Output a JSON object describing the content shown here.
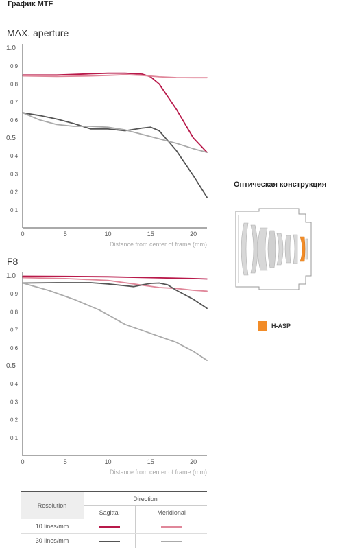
{
  "page_title": "График MTF",
  "optics": {
    "title": "Оптическая конструкция",
    "legend_label": "H-ASP",
    "legend_color": "#f28c28",
    "diagram_icon": "lens-cross-section"
  },
  "colors": {
    "sag10": "#b8194a",
    "mer10": "#e0879a",
    "sag30": "#555555",
    "mer30": "#aaaaaa",
    "axis": "#555555"
  },
  "chart_data": [
    {
      "type": "line",
      "title": "MAX. aperture",
      "xlabel": "Distance from center of frame (mm)",
      "xlim": [
        0,
        21.6
      ],
      "ylim": [
        0,
        1.0
      ],
      "xticks": [
        "0",
        "5",
        "10",
        "15",
        "20"
      ],
      "yticks": [
        "1.0",
        "0.9",
        "0.8",
        "0.7",
        "0.6",
        "0.5",
        "0.4",
        "0.3",
        "0.2",
        "0.1"
      ],
      "series": [
        {
          "key": "sag10",
          "x": [
            0,
            4,
            8,
            10,
            12,
            14,
            15,
            16,
            18,
            20,
            21.6
          ],
          "y": [
            0.85,
            0.85,
            0.857,
            0.86,
            0.86,
            0.855,
            0.84,
            0.8,
            0.66,
            0.5,
            0.42
          ]
        },
        {
          "key": "mer10",
          "x": [
            0,
            4,
            8,
            10,
            12,
            14,
            16,
            18,
            20,
            21.6
          ],
          "y": [
            0.845,
            0.842,
            0.845,
            0.848,
            0.852,
            0.848,
            0.84,
            0.836,
            0.835,
            0.835
          ]
        },
        {
          "key": "sag30",
          "x": [
            0,
            2,
            4,
            6,
            8,
            10,
            12,
            14,
            15,
            16,
            18,
            20,
            21.6
          ],
          "y": [
            0.64,
            0.625,
            0.605,
            0.58,
            0.55,
            0.55,
            0.54,
            0.555,
            0.56,
            0.54,
            0.43,
            0.29,
            0.17
          ]
        },
        {
          "key": "mer30",
          "x": [
            0,
            2,
            4,
            6,
            8,
            10,
            12,
            14,
            16,
            18,
            20,
            21.6
          ],
          "y": [
            0.64,
            0.6,
            0.575,
            0.565,
            0.565,
            0.56,
            0.545,
            0.52,
            0.495,
            0.47,
            0.44,
            0.42
          ]
        }
      ]
    },
    {
      "type": "line",
      "title": "F8",
      "xlabel": "Distance from center of frame (mm)",
      "xlim": [
        0,
        21.6
      ],
      "ylim": [
        0,
        1.0
      ],
      "xticks": [
        "0",
        "5",
        "10",
        "15",
        "20"
      ],
      "yticks": [
        "1.0",
        "0.9",
        "0.8",
        "0.7",
        "0.6",
        "0.5",
        "0.4",
        "0.3",
        "0.2",
        "0.1"
      ],
      "series": [
        {
          "key": "sag10",
          "x": [
            0,
            5,
            10,
            15,
            20,
            21.6
          ],
          "y": [
            0.998,
            0.997,
            0.995,
            0.99,
            0.985,
            0.983
          ]
        },
        {
          "key": "mer10",
          "x": [
            0,
            5,
            10,
            13,
            16,
            18,
            20,
            21.6
          ],
          "y": [
            0.99,
            0.985,
            0.975,
            0.955,
            0.935,
            0.93,
            0.92,
            0.915
          ]
        },
        {
          "key": "sag30",
          "x": [
            0,
            4,
            8,
            10,
            12,
            13,
            14,
            15,
            16,
            17,
            18,
            20,
            21.6
          ],
          "y": [
            0.96,
            0.962,
            0.962,
            0.955,
            0.945,
            0.94,
            0.95,
            0.958,
            0.96,
            0.95,
            0.92,
            0.87,
            0.82
          ]
        },
        {
          "key": "mer30",
          "x": [
            0,
            3,
            6,
            9,
            12,
            15,
            18,
            20,
            21.6
          ],
          "y": [
            0.96,
            0.92,
            0.87,
            0.81,
            0.73,
            0.68,
            0.63,
            0.58,
            0.53
          ]
        }
      ]
    }
  ],
  "legend_table": {
    "resolution_header": "Resolution",
    "direction_header": "Direction",
    "sagittal_header": "Sagittal",
    "meridional_header": "Meridional",
    "rows": [
      {
        "label": "10 lines/mm",
        "sagittal_color": "#b8194a",
        "meridional_color": "#e0879a"
      },
      {
        "label": "30 lines/mm",
        "sagittal_color": "#555555",
        "meridional_color": "#aaaaaa"
      }
    ]
  }
}
